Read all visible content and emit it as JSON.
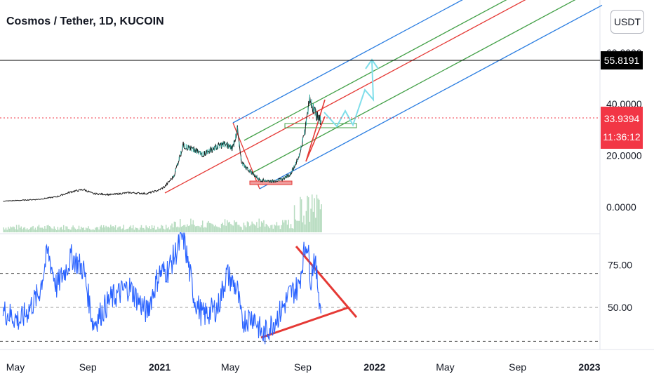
{
  "header": {
    "title": "Cosmos / Tether, 1D, KUCOIN",
    "currency_button": "USDT"
  },
  "colors": {
    "price": "#1a1a1a",
    "up_candle": "#26a69a",
    "volume": "#b7dcc0",
    "rsi": "#2962ff",
    "channel_outer": "#2a7de1",
    "channel_inner": "#43a047",
    "channel_mid": "#e53935",
    "projection": "#80deea",
    "current_price_badge": "#f23645",
    "horizontal_level": "#000000"
  },
  "chart_data": [
    {
      "type": "line",
      "title": "Cosmos / Tether, 1D, KUCOIN",
      "x_tick_labels": [
        "May",
        "Sep",
        "2021",
        "May",
        "Sep",
        "2022",
        "May",
        "Sep",
        "2023"
      ],
      "x": [
        "2020-05",
        "2020-09",
        "2021-01",
        "2021-05",
        "2021-09",
        "2022-01",
        "2022-05",
        "2022-09",
        "2023-01"
      ],
      "y_tick_labels": [
        "0.0000",
        "20.0000",
        "40.0000",
        "60.0000"
      ],
      "ylim": [
        -3,
        70
      ],
      "series": [
        {
          "values": [
            [
              "2020-04-10",
              2.3
            ],
            [
              "2020-05-10",
              2.6
            ],
            [
              "2020-06-10",
              3.0
            ],
            [
              "2020-07-10",
              4.0
            ],
            [
              "2020-08-05",
              6.0
            ],
            [
              "2020-08-25",
              6.8
            ],
            [
              "2020-09-10",
              5.2
            ],
            [
              "2020-10-10",
              4.8
            ],
            [
              "2020-11-10",
              5.6
            ],
            [
              "2020-12-10",
              5.2
            ],
            [
              "2020-12-31",
              6.6
            ],
            [
              "2021-01-10",
              8.0
            ],
            [
              "2021-01-25",
              12.0
            ],
            [
              "2021-02-10",
              24.0
            ],
            [
              "2021-03-01",
              22.0
            ],
            [
              "2021-03-15",
              20.5
            ],
            [
              "2021-04-01",
              22.5
            ],
            [
              "2021-04-20",
              24.5
            ],
            [
              "2021-05-05",
              23.0
            ],
            [
              "2021-05-13",
              30.0
            ],
            [
              "2021-05-20",
              17.0
            ],
            [
              "2021-06-01",
              14.5
            ],
            [
              "2021-06-20",
              10.5
            ],
            [
              "2021-07-10",
              10.0
            ],
            [
              "2021-07-25",
              10.5
            ],
            [
              "2021-08-10",
              12.5
            ],
            [
              "2021-08-25",
              19.0
            ],
            [
              "2021-09-05",
              30.0
            ],
            [
              "2021-09-13",
              42.0
            ],
            [
              "2021-09-20",
              38.0
            ],
            [
              "2021-09-28",
              34.0
            ],
            [
              "2021-10-02",
              33.9394
            ]
          ]
        }
      ],
      "annotations": {
        "horizontal_level": "55.8191",
        "current_price": "33.9394",
        "countdown": "11:36:12"
      }
    },
    {
      "type": "line",
      "y_tick_labels": [
        "50.00",
        "75.00"
      ],
      "ylim": [
        26,
        96
      ],
      "reference_lines": [
        30,
        50,
        70
      ],
      "series": [
        {
          "values": [
            [
              "2020-04-10",
              48
            ],
            [
              "2020-05-10",
              42
            ],
            [
              "2020-06-10",
              58
            ],
            [
              "2020-06-25",
              83
            ],
            [
              "2020-07-10",
              62
            ],
            [
              "2020-08-05",
              80
            ],
            [
              "2020-08-25",
              72
            ],
            [
              "2020-09-10",
              40
            ],
            [
              "2020-10-10",
              55
            ],
            [
              "2020-11-10",
              62
            ],
            [
              "2020-12-10",
              47
            ],
            [
              "2020-12-31",
              70
            ],
            [
              "2021-01-15",
              72
            ],
            [
              "2021-02-10",
              92
            ],
            [
              "2021-03-01",
              55
            ],
            [
              "2021-03-15",
              45
            ],
            [
              "2021-04-10",
              50
            ],
            [
              "2021-04-25",
              70
            ],
            [
              "2021-05-13",
              60
            ],
            [
              "2021-05-20",
              42
            ],
            [
              "2021-06-10",
              45
            ],
            [
              "2021-06-25",
              33
            ],
            [
              "2021-07-10",
              40
            ],
            [
              "2021-07-25",
              47
            ],
            [
              "2021-08-10",
              58
            ],
            [
              "2021-08-25",
              62
            ],
            [
              "2021-09-01",
              78
            ],
            [
              "2021-09-08",
              90
            ],
            [
              "2021-09-15",
              66
            ],
            [
              "2021-09-20",
              80
            ],
            [
              "2021-09-28",
              60
            ],
            [
              "2021-10-02",
              47
            ]
          ]
        }
      ]
    }
  ]
}
